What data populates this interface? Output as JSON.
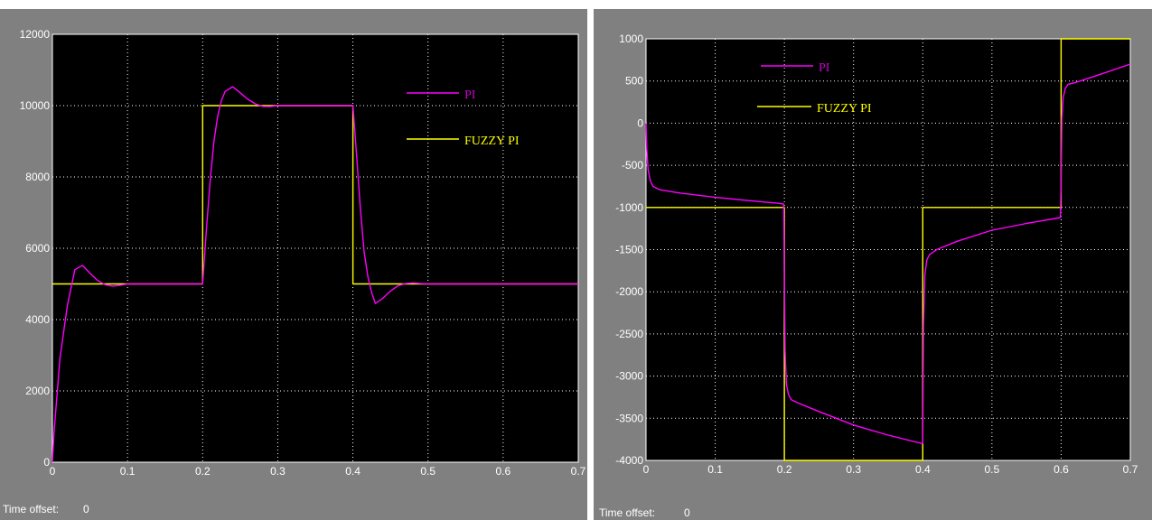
{
  "colors": {
    "panel_bg": "#808080",
    "plot_bg": "#000000",
    "grid": "#ffffff",
    "axis_text": "#ffffff",
    "pi_line": "#ff00ff",
    "fuzzy_line": "#ffff00",
    "pi_legend_text": "#cc00cc",
    "fuzzy_legend_text": "#ffff00"
  },
  "scopes": [
    {
      "time_offset_label": "Time offset:",
      "time_offset_value": "0"
    },
    {
      "time_offset_label": "Time offset:",
      "time_offset_value": "0"
    }
  ],
  "chart_data": [
    {
      "type": "line",
      "title": "",
      "xlabel": "",
      "ylabel": "",
      "xlim": [
        0,
        0.7
      ],
      "ylim": [
        0,
        12000
      ],
      "xticks": [
        "0",
        "0.1",
        "0.2",
        "0.3",
        "0.4",
        "0.5",
        "0.6",
        "0.7"
      ],
      "yticks": [
        "0",
        "2000",
        "4000",
        "6000",
        "8000",
        "10000",
        "12000"
      ],
      "grid": true,
      "legend_position": "top-right",
      "series": [
        {
          "name": "PI",
          "color": "#ff00ff",
          "x": [
            0,
            0.002,
            0.01,
            0.02,
            0.03,
            0.04,
            0.05,
            0.06,
            0.07,
            0.08,
            0.09,
            0.1,
            0.15,
            0.2,
            0.205,
            0.21,
            0.215,
            0.22,
            0.225,
            0.23,
            0.24,
            0.25,
            0.26,
            0.27,
            0.28,
            0.29,
            0.3,
            0.35,
            0.4,
            0.405,
            0.41,
            0.415,
            0.42,
            0.425,
            0.43,
            0.44,
            0.45,
            0.46,
            0.47,
            0.48,
            0.49,
            0.5,
            0.55,
            0.6,
            0.65,
            0.7
          ],
          "y": [
            0,
            800,
            2900,
            4400,
            5400,
            5520,
            5300,
            5100,
            4980,
            4940,
            4960,
            5000,
            5000,
            5000,
            6500,
            7900,
            9000,
            9700,
            10150,
            10400,
            10530,
            10360,
            10180,
            10050,
            9980,
            9975,
            10000,
            10000,
            10000,
            8600,
            7100,
            5900,
            5200,
            4750,
            4450,
            4600,
            4800,
            4950,
            5010,
            5030,
            5010,
            5000,
            5000,
            5000,
            5000,
            5000
          ]
        },
        {
          "name": "FUZZY PI",
          "color": "#ffff00",
          "x": [
            0,
            0.2,
            0.2,
            0.4,
            0.4,
            0.7
          ],
          "y": [
            5000,
            5000,
            10000,
            10000,
            5000,
            5000
          ]
        }
      ]
    },
    {
      "type": "line",
      "title": "",
      "xlabel": "",
      "ylabel": "",
      "xlim": [
        0,
        0.7
      ],
      "ylim": [
        -4000,
        1000
      ],
      "xticks": [
        "0",
        "0.1",
        "0.2",
        "0.3",
        "0.4",
        "0.5",
        "0.6",
        "0.7"
      ],
      "yticks": [
        "-4000",
        "-3500",
        "-3000",
        "-2500",
        "-2000",
        "-1500",
        "-1000",
        "-500",
        "0",
        "500",
        "1000"
      ],
      "grid": true,
      "legend_position": "top-left",
      "series": [
        {
          "name": "PI",
          "color": "#ff00ff",
          "x": [
            0,
            0.001,
            0.003,
            0.006,
            0.01,
            0.02,
            0.05,
            0.1,
            0.15,
            0.19,
            0.199,
            0.2,
            0.201,
            0.203,
            0.206,
            0.21,
            0.22,
            0.25,
            0.3,
            0.35,
            0.399,
            0.4,
            0.401,
            0.403,
            0.406,
            0.41,
            0.42,
            0.45,
            0.5,
            0.55,
            0.599,
            0.6,
            0.601,
            0.603,
            0.606,
            0.61,
            0.62,
            0.65,
            0.7
          ],
          "y": [
            0,
            -300,
            -550,
            -680,
            -750,
            -790,
            -830,
            -880,
            -920,
            -950,
            -960,
            -1800,
            -2700,
            -3100,
            -3220,
            -3280,
            -3320,
            -3420,
            -3580,
            -3700,
            -3800,
            -3800,
            -2400,
            -1800,
            -1620,
            -1560,
            -1500,
            -1400,
            -1270,
            -1190,
            -1120,
            -700,
            50,
            300,
            410,
            460,
            480,
            560,
            700
          ]
        },
        {
          "name": "FUZZY PI",
          "color": "#ffff00",
          "x": [
            0,
            0.2,
            0.2,
            0.4,
            0.4,
            0.6,
            0.6,
            0.7
          ],
          "y": [
            -1000,
            -1000,
            -4000,
            -4000,
            -1000,
            -1000,
            1000,
            1000
          ]
        }
      ]
    }
  ]
}
